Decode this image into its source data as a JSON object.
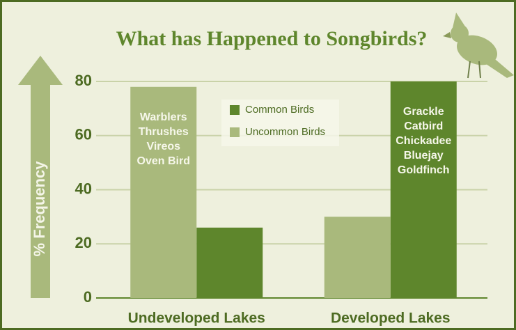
{
  "chart_data": {
    "type": "bar",
    "title": "What has Happened to Songbirds?",
    "ylabel": "% Frequency",
    "categories": [
      "Undeveloped Lakes",
      "Developed Lakes"
    ],
    "series": [
      {
        "name": "Common Birds",
        "color": "#5e862c",
        "values": [
          26,
          80
        ]
      },
      {
        "name": "Uncommon Birds",
        "color": "#a9b97c",
        "values": [
          78,
          30
        ]
      }
    ],
    "ylim": [
      0,
      80
    ],
    "yticks": [
      0,
      20,
      40,
      60,
      80
    ],
    "grid": true,
    "annotations": [
      {
        "lines": [
          "Warblers",
          "Thrushes",
          "Vireos",
          "Oven Bird"
        ]
      },
      {
        "lines": [
          "Grackle",
          "Catbird",
          "Chickadee",
          "Bluejay",
          "Goldfinch"
        ]
      }
    ]
  }
}
